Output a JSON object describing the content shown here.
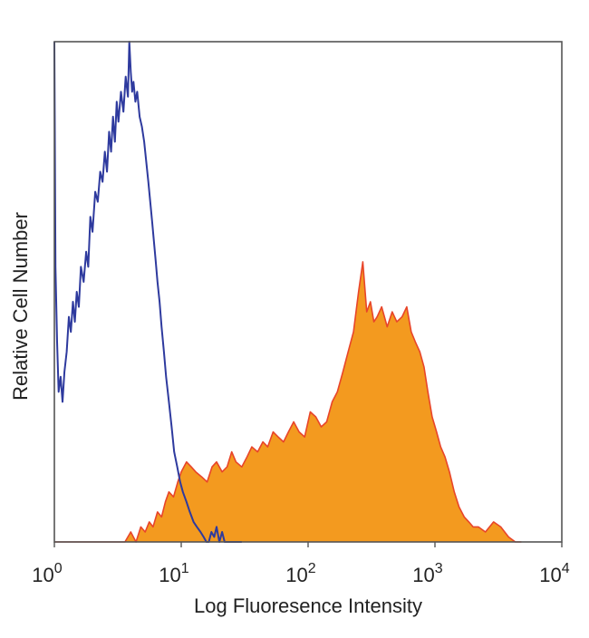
{
  "chart_data": {
    "type": "area",
    "xlabel": "Log Fluoresence Intensity",
    "ylabel": "Relative Cell Number",
    "xscale": "log",
    "xlim": [
      1,
      10000
    ],
    "ylim": [
      0,
      100
    ],
    "grid": false,
    "legend": "none",
    "xticks": [
      {
        "base": "10",
        "exp": "0",
        "value": 1
      },
      {
        "base": "10",
        "exp": "1",
        "value": 10
      },
      {
        "base": "10",
        "exp": "2",
        "value": 100
      },
      {
        "base": "10",
        "exp": "3",
        "value": 1000
      },
      {
        "base": "10",
        "exp": "4",
        "value": 10000
      }
    ],
    "series": [
      {
        "style": "outline",
        "color": "#2e3a9e",
        "x": [
          1.0,
          1.02,
          1.05,
          1.08,
          1.12,
          1.16,
          1.2,
          1.25,
          1.3,
          1.35,
          1.4,
          1.45,
          1.5,
          1.56,
          1.62,
          1.7,
          1.78,
          1.85,
          1.92,
          2.0,
          2.1,
          2.2,
          2.3,
          2.4,
          2.5,
          2.6,
          2.7,
          2.8,
          2.9,
          3.0,
          3.1,
          3.2,
          3.35,
          3.5,
          3.65,
          3.8,
          3.9,
          4.0,
          4.1,
          4.2,
          4.35,
          4.5,
          4.7,
          4.9,
          5.1,
          5.3,
          5.5,
          5.7,
          5.9,
          6.1,
          6.3,
          6.5,
          6.75,
          7.0,
          7.3,
          7.6,
          8.0,
          8.4,
          8.8,
          9.3,
          9.8,
          10.3,
          11.0,
          11.7,
          12.5,
          13.3,
          14.2,
          15.0,
          15.8,
          16.5,
          17.3,
          18.2,
          19.0,
          20.0,
          21.0,
          22.0,
          23.0,
          25.0,
          30.0
        ],
        "y": [
          100,
          55,
          40,
          30,
          33,
          28,
          34,
          38,
          45,
          42,
          48,
          44,
          50,
          47,
          55,
          52,
          58,
          55,
          65,
          62,
          70,
          68,
          74,
          72,
          78,
          74,
          82,
          78,
          85,
          80,
          88,
          84,
          90,
          86,
          93,
          89,
          100,
          94,
          90,
          92,
          88,
          90,
          85,
          83,
          80,
          76,
          72,
          68,
          64,
          60,
          56,
          52,
          48,
          43,
          38,
          33,
          28,
          23,
          18,
          15,
          12,
          10,
          8,
          6,
          4,
          3,
          2,
          1,
          0,
          0,
          2,
          1,
          3,
          0,
          2,
          0,
          0,
          0,
          0
        ]
      },
      {
        "style": "filled",
        "color": "#f39a1f",
        "edge_color": "#e8452a",
        "x": [
          1.0,
          1.2,
          1.5,
          1.8,
          2.0,
          2.2,
          2.4,
          2.6,
          2.8,
          3.0,
          3.3,
          3.6,
          4.0,
          4.4,
          4.8,
          5.2,
          5.6,
          6.0,
          6.5,
          7.0,
          7.5,
          8.0,
          8.7,
          9.4,
          10.0,
          11.0,
          12.0,
          13.0,
          14.5,
          16.0,
          17.5,
          19.0,
          21.0,
          23.0,
          25.0,
          27.0,
          30.0,
          33.0,
          36.0,
          40.0,
          44.0,
          48.0,
          53.0,
          58.0,
          64.0,
          70.0,
          77.0,
          85.0,
          94.0,
          104.0,
          115.0,
          127.0,
          140.0,
          155.0,
          170.0,
          188.0,
          207.0,
          228.0,
          250.0,
          270.0,
          290.0,
          310.0,
          330.0,
          350.0,
          380.0,
          420.0,
          460.0,
          500.0,
          550.0,
          600.0,
          650.0,
          700.0,
          760.0,
          820.0,
          880.0,
          950.0,
          1030.0,
          1110.0,
          1200.0,
          1300.0,
          1420.0,
          1550.0,
          1700.0,
          1850.0,
          2000.0,
          2200.0,
          2500.0,
          2900.0,
          3300.0,
          3800.0,
          4300.0,
          4800.0
        ],
        "y": [
          0,
          0,
          0,
          0,
          0,
          0,
          0,
          0,
          0,
          0,
          0,
          0,
          2,
          0,
          3,
          2,
          4,
          3,
          6,
          5,
          8,
          10,
          9,
          12,
          14,
          16,
          15,
          14,
          13,
          12,
          15,
          16,
          14,
          15,
          18,
          16,
          15,
          17,
          19,
          18,
          20,
          19,
          22,
          21,
          20,
          22,
          24,
          22,
          21,
          26,
          25,
          23,
          24,
          28,
          30,
          34,
          38,
          42,
          50,
          56,
          46,
          48,
          44,
          45,
          47,
          43,
          46,
          44,
          45,
          47,
          42,
          40,
          38,
          35,
          30,
          25,
          22,
          19,
          17,
          14,
          10,
          7,
          5,
          4,
          3,
          3,
          2,
          4,
          3,
          1,
          0,
          0
        ]
      }
    ]
  }
}
